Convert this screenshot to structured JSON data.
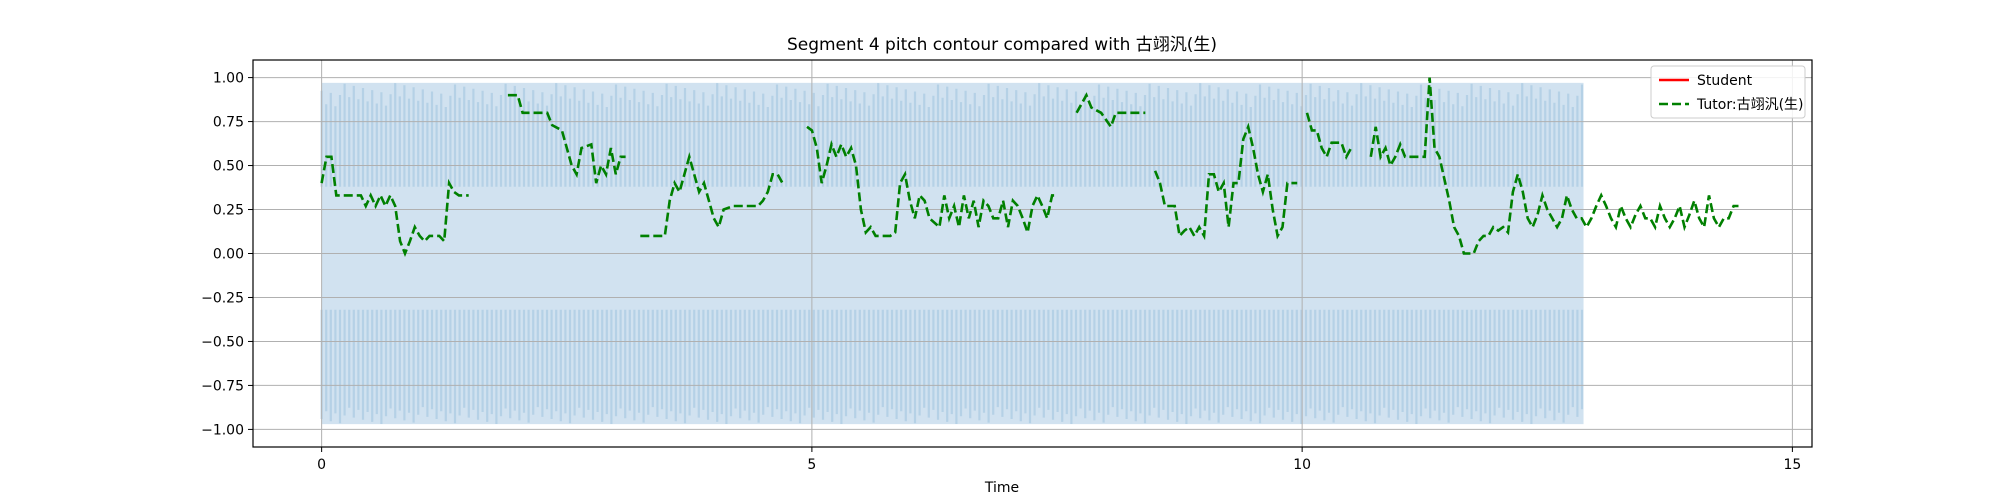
{
  "chart_data": {
    "type": "line",
    "title": "Segment 4 pitch contour compared with 古翊汎(生)",
    "xlabel": "Time",
    "ylabel": "",
    "xlim": [
      -0.7,
      15.2
    ],
    "ylim": [
      -1.1,
      1.1
    ],
    "x_ticks": [
      0,
      5,
      10,
      15
    ],
    "y_ticks": [
      1.0,
      0.75,
      0.5,
      0.25,
      0.0,
      -0.25,
      -0.5,
      -0.75,
      -1.0
    ],
    "x_tick_labels": [
      "0",
      "5",
      "10",
      "15"
    ],
    "y_tick_labels": [
      "1.00",
      "0.75",
      "0.50",
      "0.25",
      "0.00",
      "−0.25",
      "−0.50",
      "−0.75",
      "−1.00"
    ],
    "grid": true,
    "legend_position": "top-right",
    "waveform": {
      "x_start": 0,
      "x_end": 12.87,
      "amplitude_max": 0.97,
      "amplitude_min": -0.97,
      "dense_positive_low": 0.38,
      "dense_negative_high": -0.32,
      "color": "#b8d3e8"
    },
    "series": [
      {
        "name": "Student",
        "color": "#ff0000",
        "style": "solid",
        "segments": []
      },
      {
        "name": "Tutor:古翊汎(生)",
        "color": "#008000",
        "style": "dashed",
        "segments": [
          [
            [
              0,
              0.4
            ],
            [
              0.05,
              0.55
            ],
            [
              0.1,
              0.55
            ],
            [
              0.15,
              0.33
            ],
            [
              0.3,
              0.33
            ],
            [
              0.4,
              0.33
            ],
            [
              0.45,
              0.27
            ],
            [
              0.5,
              0.33
            ],
            [
              0.55,
              0.27
            ],
            [
              0.6,
              0.33
            ],
            [
              0.65,
              0.27
            ],
            [
              0.7,
              0.33
            ],
            [
              0.75,
              0.27
            ],
            [
              0.8,
              0.07
            ],
            [
              0.85,
              0.0
            ],
            [
              0.9,
              0.07
            ],
            [
              0.95,
              0.15
            ],
            [
              1.0,
              0.1
            ],
            [
              1.05,
              0.07
            ],
            [
              1.1,
              0.1
            ],
            [
              1.2,
              0.1
            ],
            [
              1.25,
              0.07
            ],
            [
              1.3,
              0.4
            ],
            [
              1.35,
              0.35
            ],
            [
              1.4,
              0.33
            ],
            [
              1.5,
              0.33
            ]
          ],
          [
            [
              1.9,
              0.9
            ],
            [
              2.0,
              0.9
            ],
            [
              2.05,
              0.8
            ],
            [
              2.3,
              0.8
            ],
            [
              2.35,
              0.73
            ],
            [
              2.45,
              0.7
            ],
            [
              2.55,
              0.5
            ],
            [
              2.6,
              0.45
            ],
            [
              2.65,
              0.6
            ],
            [
              2.75,
              0.62
            ],
            [
              2.8,
              0.4
            ],
            [
              2.85,
              0.5
            ],
            [
              2.9,
              0.45
            ],
            [
              2.95,
              0.6
            ],
            [
              3.0,
              0.45
            ],
            [
              3.05,
              0.55
            ],
            [
              3.1,
              0.55
            ]
          ],
          [
            [
              3.25,
              0.1
            ],
            [
              3.5,
              0.1
            ],
            [
              3.55,
              0.3
            ],
            [
              3.6,
              0.4
            ],
            [
              3.65,
              0.35
            ],
            [
              3.7,
              0.45
            ],
            [
              3.75,
              0.55
            ],
            [
              3.8,
              0.45
            ],
            [
              3.85,
              0.35
            ],
            [
              3.9,
              0.4
            ],
            [
              3.95,
              0.3
            ],
            [
              4.0,
              0.2
            ],
            [
              4.05,
              0.15
            ],
            [
              4.1,
              0.25
            ],
            [
              4.2,
              0.27
            ],
            [
              4.45,
              0.27
            ],
            [
              4.5,
              0.3
            ],
            [
              4.55,
              0.35
            ],
            [
              4.6,
              0.45
            ],
            [
              4.65,
              0.45
            ],
            [
              4.7,
              0.4
            ]
          ],
          [
            [
              4.95,
              0.72
            ],
            [
              5.0,
              0.7
            ],
            [
              5.05,
              0.6
            ],
            [
              5.1,
              0.4
            ],
            [
              5.15,
              0.5
            ],
            [
              5.2,
              0.62
            ],
            [
              5.25,
              0.55
            ],
            [
              5.3,
              0.62
            ],
            [
              5.35,
              0.55
            ],
            [
              5.4,
              0.6
            ],
            [
              5.45,
              0.5
            ],
            [
              5.5,
              0.25
            ],
            [
              5.55,
              0.12
            ],
            [
              5.6,
              0.15
            ],
            [
              5.65,
              0.1
            ],
            [
              5.8,
              0.1
            ],
            [
              5.85,
              0.12
            ],
            [
              5.9,
              0.4
            ],
            [
              5.95,
              0.45
            ],
            [
              6.0,
              0.3
            ],
            [
              6.05,
              0.2
            ],
            [
              6.1,
              0.33
            ],
            [
              6.15,
              0.3
            ],
            [
              6.2,
              0.2
            ],
            [
              6.3,
              0.15
            ],
            [
              6.35,
              0.33
            ],
            [
              6.4,
              0.2
            ],
            [
              6.45,
              0.27
            ],
            [
              6.5,
              0.15
            ],
            [
              6.55,
              0.33
            ],
            [
              6.6,
              0.2
            ],
            [
              6.65,
              0.3
            ],
            [
              6.7,
              0.15
            ],
            [
              6.75,
              0.3
            ],
            [
              6.8,
              0.27
            ],
            [
              6.85,
              0.2
            ],
            [
              6.9,
              0.2
            ],
            [
              6.95,
              0.3
            ],
            [
              7.0,
              0.15
            ],
            [
              7.05,
              0.3
            ],
            [
              7.1,
              0.27
            ],
            [
              7.15,
              0.2
            ],
            [
              7.2,
              0.12
            ],
            [
              7.25,
              0.27
            ],
            [
              7.3,
              0.33
            ],
            [
              7.35,
              0.27
            ],
            [
              7.4,
              0.2
            ],
            [
              7.45,
              0.33
            ],
            [
              7.5,
              0.33
            ]
          ],
          [
            [
              7.7,
              0.8
            ],
            [
              7.8,
              0.9
            ],
            [
              7.85,
              0.83
            ],
            [
              7.95,
              0.8
            ],
            [
              8.05,
              0.72
            ],
            [
              8.1,
              0.8
            ],
            [
              8.4,
              0.8
            ]
          ],
          [
            [
              8.5,
              0.47
            ],
            [
              8.55,
              0.4
            ],
            [
              8.6,
              0.27
            ],
            [
              8.7,
              0.27
            ],
            [
              8.75,
              0.1
            ],
            [
              8.8,
              0.13
            ],
            [
              8.85,
              0.15
            ],
            [
              8.9,
              0.1
            ],
            [
              8.95,
              0.15
            ],
            [
              9.0,
              0.1
            ],
            [
              9.05,
              0.45
            ],
            [
              9.1,
              0.45
            ],
            [
              9.15,
              0.35
            ],
            [
              9.2,
              0.4
            ],
            [
              9.25,
              0.15
            ],
            [
              9.3,
              0.4
            ],
            [
              9.35,
              0.4
            ],
            [
              9.4,
              0.65
            ],
            [
              9.45,
              0.72
            ],
            [
              9.5,
              0.6
            ],
            [
              9.55,
              0.45
            ],
            [
              9.6,
              0.35
            ],
            [
              9.65,
              0.45
            ],
            [
              9.7,
              0.25
            ],
            [
              9.75,
              0.1
            ],
            [
              9.8,
              0.15
            ],
            [
              9.85,
              0.4
            ],
            [
              9.95,
              0.4
            ]
          ],
          [
            [
              10.05,
              0.8
            ],
            [
              10.1,
              0.7
            ],
            [
              10.15,
              0.7
            ],
            [
              10.2,
              0.6
            ],
            [
              10.25,
              0.55
            ],
            [
              10.3,
              0.63
            ],
            [
              10.4,
              0.63
            ],
            [
              10.45,
              0.55
            ],
            [
              10.5,
              0.6
            ]
          ],
          [
            [
              10.7,
              0.55
            ],
            [
              10.75,
              0.72
            ],
            [
              10.8,
              0.55
            ],
            [
              10.85,
              0.6
            ],
            [
              10.9,
              0.5
            ],
            [
              10.95,
              0.55
            ],
            [
              11.0,
              0.62
            ],
            [
              11.05,
              0.55
            ],
            [
              11.25,
              0.55
            ],
            [
              11.3,
              1.0
            ],
            [
              11.35,
              0.6
            ],
            [
              11.4,
              0.55
            ],
            [
              11.5,
              0.3
            ],
            [
              11.55,
              0.15
            ],
            [
              11.6,
              0.1
            ],
            [
              11.65,
              0.0
            ],
            [
              11.7,
              0.0
            ],
            [
              11.75,
              0.0
            ],
            [
              11.8,
              0.07
            ],
            [
              11.85,
              0.1
            ],
            [
              11.9,
              0.1
            ],
            [
              11.95,
              0.15
            ],
            [
              12.0,
              0.13
            ],
            [
              12.05,
              0.15
            ],
            [
              12.1,
              0.12
            ],
            [
              12.15,
              0.35
            ],
            [
              12.2,
              0.45
            ],
            [
              12.25,
              0.35
            ],
            [
              12.3,
              0.2
            ],
            [
              12.35,
              0.15
            ],
            [
              12.4,
              0.22
            ],
            [
              12.45,
              0.33
            ],
            [
              12.5,
              0.25
            ],
            [
              12.55,
              0.2
            ],
            [
              12.6,
              0.15
            ],
            [
              12.65,
              0.2
            ],
            [
              12.7,
              0.33
            ],
            [
              12.75,
              0.25
            ],
            [
              12.8,
              0.2
            ],
            [
              12.85,
              0.2
            ],
            [
              12.9,
              0.15
            ],
            [
              12.95,
              0.2
            ],
            [
              13.0,
              0.27
            ],
            [
              13.05,
              0.33
            ],
            [
              13.1,
              0.27
            ],
            [
              13.15,
              0.2
            ],
            [
              13.2,
              0.15
            ],
            [
              13.25,
              0.27
            ],
            [
              13.3,
              0.2
            ],
            [
              13.35,
              0.15
            ],
            [
              13.4,
              0.22
            ],
            [
              13.45,
              0.27
            ],
            [
              13.5,
              0.2
            ],
            [
              13.55,
              0.2
            ],
            [
              13.6,
              0.15
            ],
            [
              13.65,
              0.27
            ],
            [
              13.7,
              0.2
            ],
            [
              13.75,
              0.15
            ],
            [
              13.8,
              0.2
            ],
            [
              13.85,
              0.27
            ],
            [
              13.9,
              0.15
            ],
            [
              13.95,
              0.22
            ],
            [
              14.0,
              0.3
            ],
            [
              14.05,
              0.2
            ],
            [
              14.1,
              0.15
            ],
            [
              14.15,
              0.33
            ],
            [
              14.2,
              0.2
            ],
            [
              14.25,
              0.15
            ],
            [
              14.3,
              0.2
            ],
            [
              14.35,
              0.2
            ],
            [
              14.4,
              0.27
            ],
            [
              14.45,
              0.27
            ]
          ]
        ]
      }
    ]
  }
}
